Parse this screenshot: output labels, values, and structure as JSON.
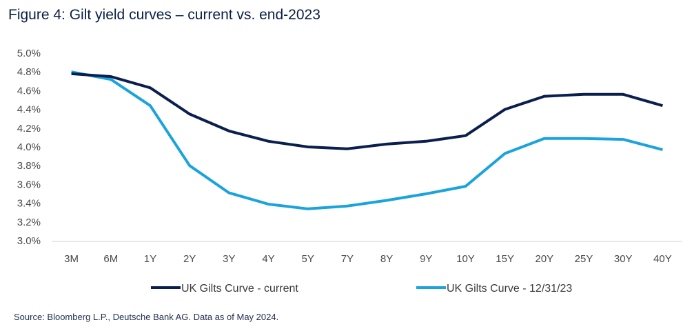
{
  "title": "Figure 4: Gilt yield curves – current vs. end-2023",
  "source": "Source: Bloomberg L.P., Deutsche Bank AG. Data as of May 2024.",
  "colors": {
    "current": "#0b1f4f",
    "end2023": "#1aa3dc",
    "axis": "#d0d0d0",
    "tick_text": "#4a4a4a"
  },
  "chart_data": {
    "type": "line",
    "categories": [
      "3M",
      "6M",
      "1Y",
      "2Y",
      "3Y",
      "4Y",
      "5Y",
      "7Y",
      "8Y",
      "9Y",
      "10Y",
      "15Y",
      "20Y",
      "25Y",
      "30Y",
      "40Y"
    ],
    "y_ticks": [
      "3.0%",
      "3.2%",
      "3.4%",
      "3.6%",
      "3.8%",
      "4.0%",
      "4.2%",
      "4.4%",
      "4.6%",
      "4.8%",
      "5.0%"
    ],
    "ylim": [
      3.0,
      5.0
    ],
    "grid": false,
    "legend_position": "bottom",
    "series": [
      {
        "name": "UK Gilts Curve - current",
        "color_key": "current",
        "values": [
          4.78,
          4.75,
          4.63,
          4.35,
          4.17,
          4.06,
          4.0,
          3.98,
          4.03,
          4.06,
          4.12,
          4.4,
          4.54,
          4.56,
          4.56,
          4.44
        ]
      },
      {
        "name": "UK Gilts Curve - 12/31/23",
        "color_key": "end2023",
        "values": [
          4.8,
          4.72,
          4.44,
          3.8,
          3.51,
          3.39,
          3.34,
          3.37,
          3.43,
          3.5,
          3.58,
          3.93,
          4.09,
          4.09,
          4.08,
          3.97
        ]
      }
    ]
  }
}
